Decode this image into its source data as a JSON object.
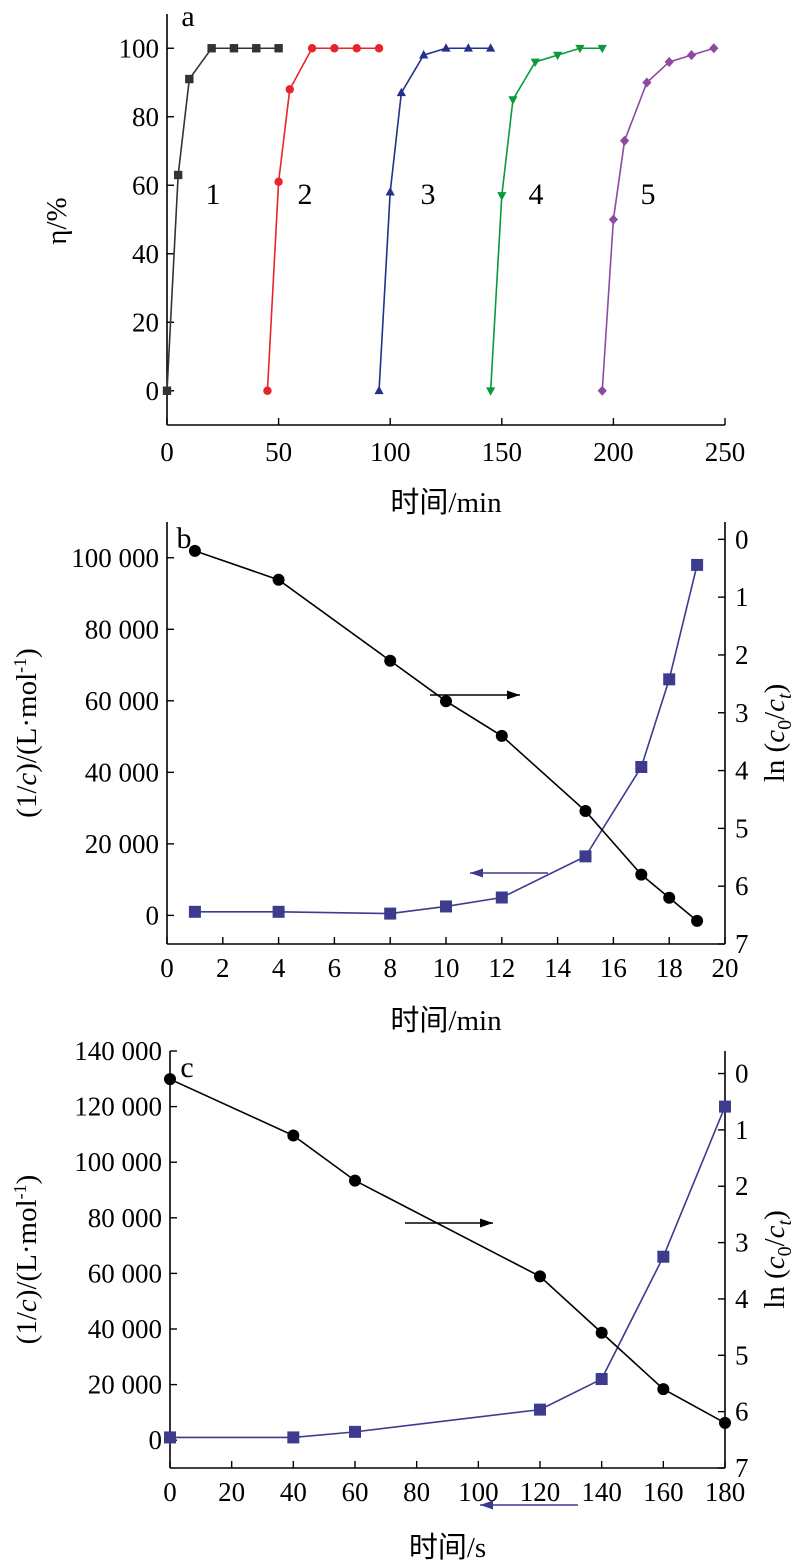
{
  "chart_data": [
    {
      "type": "line",
      "panel_label": "a",
      "xlabel": "时间/min",
      "ylabel": "η/%",
      "xlim": [
        0,
        250
      ],
      "ylim": [
        -10,
        110
      ],
      "xticks": [
        0,
        50,
        100,
        150,
        200,
        250
      ],
      "yticks": [
        0,
        20,
        40,
        60,
        80,
        100
      ],
      "series": [
        {
          "label": "1",
          "color": "#333333",
          "marker": "square",
          "x": [
            0,
            5,
            10,
            20,
            30,
            40,
            50
          ],
          "y": [
            0,
            63,
            91,
            100,
            100,
            100,
            100
          ]
        },
        {
          "label": "2",
          "color": "#e8242a",
          "marker": "circle",
          "x": [
            45,
            50,
            55,
            65,
            75,
            85,
            95
          ],
          "y": [
            0,
            61,
            88,
            100,
            100,
            100,
            100
          ]
        },
        {
          "label": "3",
          "color": "#22328c",
          "marker": "triangle-up",
          "x": [
            95,
            100,
            105,
            115,
            125,
            135,
            145
          ],
          "y": [
            0,
            58,
            87,
            98,
            100,
            100,
            100
          ]
        },
        {
          "label": "4",
          "color": "#0a9a3c",
          "marker": "triangle-down",
          "x": [
            145,
            150,
            155,
            165,
            175,
            185,
            195
          ],
          "y": [
            0,
            57,
            85,
            96,
            98,
            100,
            100
          ]
        },
        {
          "label": "5",
          "color": "#8e4aa0",
          "marker": "diamond",
          "x": [
            195,
            200,
            205,
            215,
            225,
            235,
            245
          ],
          "y": [
            0,
            50,
            73,
            90,
            96,
            98,
            100
          ]
        }
      ]
    },
    {
      "type": "line",
      "panel_label": "b",
      "xlabel": "时间/min",
      "ylabel_left": "(1/c)/(L·mol⁻¹)",
      "ylabel_right": "ln (c0/ct)",
      "xlim": [
        0,
        20
      ],
      "ylim_left": [
        -8000,
        110000
      ],
      "ylim_right": [
        7,
        -0.3
      ],
      "xticks": [
        0,
        2,
        4,
        6,
        8,
        10,
        12,
        14,
        16,
        18,
        20
      ],
      "yticks_left": [
        0,
        20000,
        40000,
        60000,
        80000,
        100000
      ],
      "ytick_labels_left": [
        "0",
        "20 000",
        "40 000",
        "60 000",
        "80 000",
        "100 000"
      ],
      "yticks_right": [
        0,
        1,
        2,
        3,
        4,
        5,
        6,
        7
      ],
      "series": [
        {
          "axis": "left",
          "color": "#3d3b8e",
          "marker": "square",
          "x": [
            1,
            4,
            8,
            10,
            12,
            15,
            17,
            18,
            19
          ],
          "y": [
            1000,
            1000,
            500,
            2500,
            5000,
            16500,
            41500,
            66000,
            98000
          ]
        },
        {
          "axis": "right",
          "color": "#000000",
          "marker": "circle",
          "x": [
            1,
            4,
            8,
            10,
            12,
            15,
            17,
            18,
            19
          ],
          "y": [
            0.2,
            0.7,
            2.1,
            2.8,
            3.4,
            4.7,
            5.8,
            6.2,
            6.6
          ]
        }
      ]
    },
    {
      "type": "line",
      "panel_label": "c",
      "xlabel": "时间/s",
      "ylabel_left": "(1/c)/(L·mol⁻¹)",
      "ylabel_right": "ln (c0/ct)",
      "xlim": [
        0,
        180
      ],
      "ylim_left": [
        -10000,
        140000
      ],
      "ylim_right": [
        7,
        -0.4
      ],
      "xticks": [
        0,
        20,
        40,
        60,
        80,
        100,
        120,
        140,
        160,
        180
      ],
      "yticks_left": [
        0,
        20000,
        40000,
        60000,
        80000,
        100000,
        120000,
        140000
      ],
      "ytick_labels_left": [
        "0",
        "20 000",
        "40 000",
        "60 000",
        "80 000",
        "100 000",
        "120 000",
        "140 000"
      ],
      "yticks_right": [
        0,
        1,
        2,
        3,
        4,
        5,
        6,
        7
      ],
      "series": [
        {
          "axis": "left",
          "color": "#3d3b8e",
          "marker": "square",
          "x": [
            0,
            40,
            60,
            120,
            140,
            160,
            180
          ],
          "y": [
            1000,
            1000,
            3000,
            11000,
            22000,
            66000,
            120000
          ]
        },
        {
          "axis": "right",
          "color": "#000000",
          "marker": "circle",
          "x": [
            0,
            40,
            60,
            120,
            140,
            160,
            180
          ],
          "y": [
            0.1,
            1.1,
            1.9,
            3.6,
            4.6,
            5.6,
            6.2
          ]
        }
      ]
    }
  ]
}
